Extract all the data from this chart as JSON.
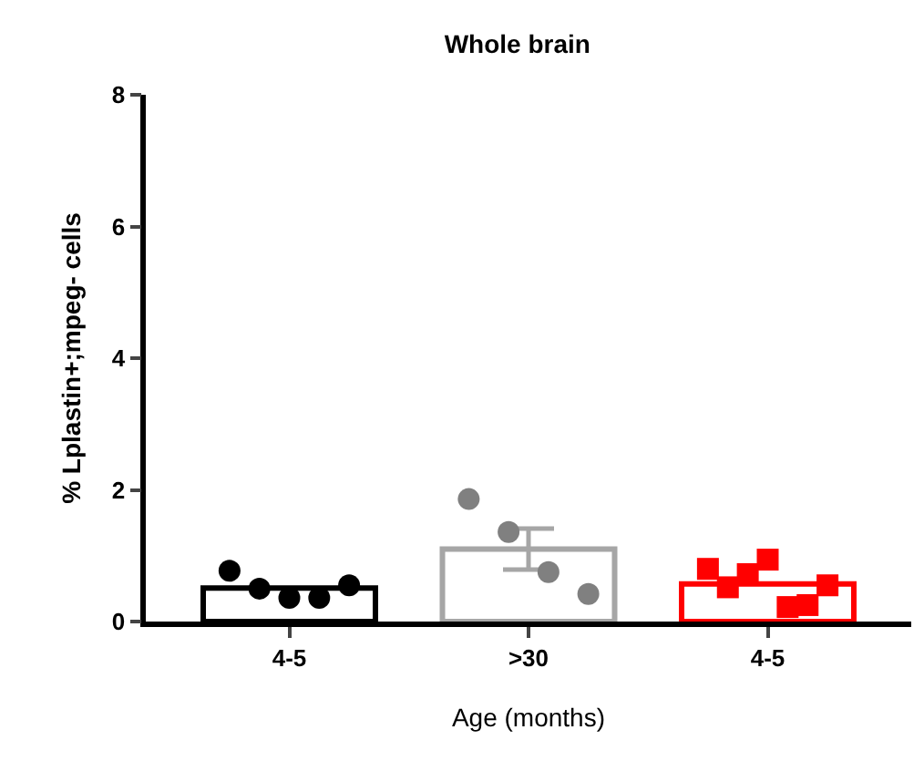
{
  "chart_data": {
    "type": "bar",
    "title": "Whole brain",
    "xlabel": "Age (months)",
    "ylabel": "% Lplastin+;mpeg- cells",
    "categories": [
      "4-5",
      ">30",
      "4-5"
    ],
    "ylim": [
      0,
      8
    ],
    "yticks": [
      0,
      2,
      4,
      6,
      8
    ],
    "grid": false,
    "values": [
      0.51,
      1.1,
      0.57
    ],
    "colors": [
      "#000000",
      "#a6a6a6",
      "#ff0000"
    ],
    "errors": [
      null,
      0.31,
      null
    ],
    "series": [
      {
        "type": "scatter",
        "marker": "circle",
        "colors": [
          "#000000",
          "#808080",
          null
        ],
        "values": [
          0.77,
          1.86,
          null
        ]
      },
      {
        "type": "scatter",
        "marker": "circle",
        "colors": [
          "#000000",
          "#808080",
          null
        ],
        "values": [
          0.5,
          1.36,
          null
        ]
      },
      {
        "type": "scatter",
        "marker": "circle",
        "colors": [
          "#000000",
          "#808080",
          null
        ],
        "values": [
          0.36,
          0.75,
          null
        ]
      },
      {
        "type": "scatter",
        "marker": "circle",
        "colors": [
          "#000000",
          "#808080",
          null
        ],
        "values": [
          0.36,
          0.42,
          null
        ]
      },
      {
        "type": "scatter",
        "marker": "circle",
        "colors": [
          "#000000",
          null,
          null
        ],
        "values": [
          0.55,
          null,
          null
        ]
      },
      {
        "type": "scatter",
        "marker": "square",
        "color": "#ff0000",
        "values": [
          null,
          null,
          0.8
        ]
      },
      {
        "type": "scatter",
        "marker": "square",
        "color": "#ff0000",
        "values": [
          null,
          null,
          0.52
        ]
      },
      {
        "type": "scatter",
        "marker": "square",
        "color": "#ff0000",
        "values": [
          null,
          null,
          0.72
        ]
      },
      {
        "type": "scatter",
        "marker": "square",
        "color": "#ff0000",
        "values": [
          null,
          null,
          0.94
        ]
      },
      {
        "type": "scatter",
        "marker": "square",
        "color": "#ff0000",
        "values": [
          null,
          null,
          0.22
        ]
      },
      {
        "type": "scatter",
        "marker": "square",
        "color": "#ff0000",
        "values": [
          null,
          null,
          0.25
        ]
      },
      {
        "type": "scatter",
        "marker": "square",
        "color": "#ff0000",
        "values": [
          null,
          null,
          0.55
        ]
      }
    ]
  }
}
